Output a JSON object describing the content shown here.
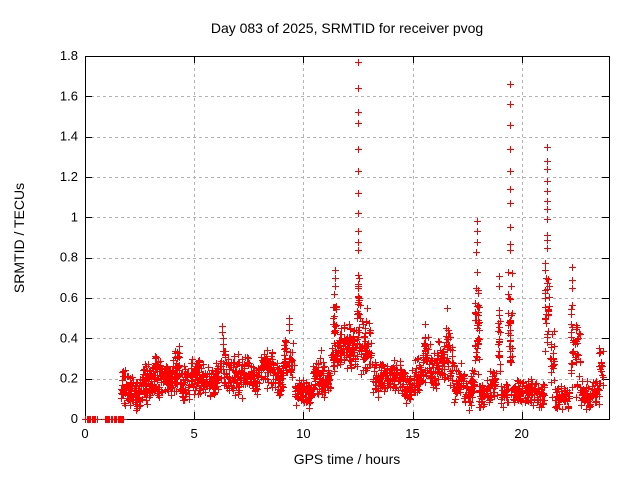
{
  "chart_data": {
    "type": "scatter",
    "title": "Day 083 of 2025, SRMTID for receiver pvog",
    "xlabel": "GPS time / hours",
    "ylabel": "SRMTID / TECUs",
    "xlim": [
      0,
      24
    ],
    "ylim": [
      0,
      1.8
    ],
    "xticks": [
      0,
      5,
      10,
      15,
      20
    ],
    "yticks": [
      0,
      0.2,
      0.4,
      0.6,
      0.8,
      1,
      1.2,
      1.4,
      1.6,
      1.8
    ],
    "ytick_labels": [
      "0",
      "0.2",
      "0.4",
      "0.6",
      "0.8",
      "1",
      "1.2",
      "1.4",
      "1.6",
      "1.8"
    ],
    "grid": true,
    "legend": "none",
    "marker": "plus",
    "marker_color": "#ff0000",
    "grid_color": "#b3b3b3",
    "border_color": "#000000",
    "background_color": "#ffffff",
    "zero_line_x": [
      0.02,
      0.07,
      0.12,
      0.18,
      0.24,
      0.3,
      0.36,
      0.42,
      0.48,
      0.54,
      0.92,
      0.97,
      1.02,
      1.07,
      1.12,
      1.18,
      1.25,
      1.32,
      1.38,
      1.44,
      1.5,
      1.58,
      1.61,
      1.63,
      1.65,
      1.66,
      1.68,
      1.7,
      1.72,
      1.74
    ],
    "bands_format": "x_start, x_end, y_min, y_max, point_count (dense scatter cloud envelope read from plot)",
    "cloud_bands": [
      [
        1.65,
        2.1,
        0.04,
        0.25,
        50
      ],
      [
        2.1,
        2.6,
        0.03,
        0.22,
        55
      ],
      [
        2.6,
        3.1,
        0.06,
        0.3,
        58
      ],
      [
        3.1,
        3.6,
        0.1,
        0.34,
        58
      ],
      [
        3.6,
        4.0,
        0.1,
        0.3,
        50
      ],
      [
        4.0,
        4.35,
        0.12,
        0.38,
        45
      ],
      [
        4.35,
        4.8,
        0.08,
        0.28,
        48
      ],
      [
        4.8,
        5.3,
        0.1,
        0.32,
        52
      ],
      [
        5.3,
        5.9,
        0.1,
        0.28,
        55
      ],
      [
        5.9,
        6.15,
        0.12,
        0.3,
        26
      ],
      [
        6.15,
        6.45,
        0.14,
        0.37,
        26
      ],
      [
        6.45,
        7.0,
        0.1,
        0.33,
        50
      ],
      [
        7.0,
        7.5,
        0.1,
        0.33,
        48
      ],
      [
        7.5,
        8.0,
        0.12,
        0.3,
        48
      ],
      [
        8.0,
        8.6,
        0.13,
        0.36,
        55
      ],
      [
        8.6,
        9.1,
        0.1,
        0.3,
        48
      ],
      [
        9.1,
        9.6,
        0.13,
        0.42,
        40
      ],
      [
        9.6,
        10.1,
        0.06,
        0.22,
        46
      ],
      [
        10.1,
        10.45,
        0.05,
        0.2,
        32
      ],
      [
        10.45,
        10.8,
        0.1,
        0.35,
        36
      ],
      [
        10.8,
        11.25,
        0.08,
        0.3,
        42
      ],
      [
        11.25,
        11.6,
        0.22,
        0.48,
        28
      ],
      [
        11.32,
        11.52,
        0.35,
        0.6,
        18
      ],
      [
        11.6,
        12.25,
        0.22,
        0.5,
        70
      ],
      [
        12.25,
        12.45,
        0.22,
        0.48,
        24
      ],
      [
        12.45,
        12.6,
        0.3,
        0.8,
        28
      ],
      [
        12.6,
        13.15,
        0.18,
        0.52,
        52
      ],
      [
        13.15,
        14.0,
        0.1,
        0.3,
        75
      ],
      [
        14.0,
        14.55,
        0.12,
        0.3,
        50
      ],
      [
        14.55,
        15.1,
        0.07,
        0.25,
        50
      ],
      [
        15.1,
        15.45,
        0.12,
        0.32,
        32
      ],
      [
        15.45,
        15.8,
        0.15,
        0.44,
        36
      ],
      [
        15.8,
        16.1,
        0.12,
        0.35,
        28
      ],
      [
        16.1,
        16.5,
        0.15,
        0.42,
        38
      ],
      [
        16.5,
        16.7,
        0.18,
        0.52,
        20
      ],
      [
        16.7,
        16.9,
        0.12,
        0.4,
        18
      ],
      [
        16.9,
        17.35,
        0.06,
        0.28,
        45
      ],
      [
        17.35,
        17.72,
        0.04,
        0.22,
        34
      ],
      [
        17.72,
        17.84,
        0.1,
        0.3,
        12
      ],
      [
        17.84,
        18.04,
        0.2,
        0.78,
        38
      ],
      [
        18.04,
        18.55,
        0.05,
        0.2,
        46
      ],
      [
        18.55,
        18.88,
        0.08,
        0.28,
        28
      ],
      [
        18.88,
        19.04,
        0.15,
        0.62,
        22
      ],
      [
        19.04,
        19.36,
        0.05,
        0.2,
        30
      ],
      [
        19.38,
        19.56,
        0.1,
        0.8,
        34
      ],
      [
        19.56,
        20.15,
        0.07,
        0.22,
        52
      ],
      [
        20.15,
        20.7,
        0.06,
        0.2,
        48
      ],
      [
        20.7,
        21.04,
        0.05,
        0.18,
        28
      ],
      [
        21.04,
        21.28,
        0.3,
        0.8,
        28
      ],
      [
        21.28,
        21.52,
        0.1,
        0.48,
        20
      ],
      [
        21.52,
        22.2,
        0.04,
        0.18,
        58
      ],
      [
        22.24,
        22.38,
        0.1,
        0.62,
        20
      ],
      [
        22.42,
        22.68,
        0.08,
        0.56,
        24
      ],
      [
        22.68,
        23.3,
        0.04,
        0.2,
        55
      ],
      [
        23.3,
        23.55,
        0.05,
        0.2,
        20
      ],
      [
        23.55,
        23.75,
        0.1,
        0.42,
        16
      ]
    ],
    "spike_points": [
      [
        6.3,
        0.37
      ],
      [
        6.3,
        0.4
      ],
      [
        6.29,
        0.43
      ],
      [
        6.28,
        0.46
      ],
      [
        9.35,
        0.44
      ],
      [
        9.36,
        0.47
      ],
      [
        9.34,
        0.5
      ],
      [
        11.42,
        0.62
      ],
      [
        11.43,
        0.66
      ],
      [
        11.43,
        0.7
      ],
      [
        11.44,
        0.74
      ],
      [
        12.5,
        0.84
      ],
      [
        12.5,
        0.88
      ],
      [
        12.5,
        0.93
      ],
      [
        12.51,
        1.02
      ],
      [
        12.51,
        1.12
      ],
      [
        12.52,
        1.23
      ],
      [
        12.52,
        1.34
      ],
      [
        12.5,
        1.47
      ],
      [
        12.5,
        1.52
      ],
      [
        12.51,
        1.64
      ],
      [
        12.51,
        1.77
      ],
      [
        12.92,
        0.55
      ],
      [
        15.55,
        0.47
      ],
      [
        16.6,
        0.55
      ],
      [
        17.93,
        0.83
      ],
      [
        17.94,
        0.88
      ],
      [
        17.95,
        0.93
      ],
      [
        17.96,
        0.98
      ],
      [
        18.95,
        0.66
      ],
      [
        18.95,
        0.71
      ],
      [
        19.45,
        0.84
      ],
      [
        19.45,
        0.87
      ],
      [
        19.45,
        0.95
      ],
      [
        19.46,
        1.07
      ],
      [
        19.46,
        1.14
      ],
      [
        19.45,
        1.23
      ],
      [
        19.45,
        1.34
      ],
      [
        19.46,
        1.46
      ],
      [
        19.46,
        1.56
      ],
      [
        19.45,
        1.66
      ],
      [
        21.15,
        0.85
      ],
      [
        21.15,
        0.89
      ],
      [
        21.16,
        0.91
      ],
      [
        21.16,
        0.99
      ],
      [
        21.15,
        1.04
      ],
      [
        21.15,
        1.08
      ],
      [
        21.16,
        1.13
      ],
      [
        21.16,
        1.18
      ],
      [
        21.15,
        1.24
      ],
      [
        21.15,
        1.28
      ],
      [
        21.16,
        1.35
      ],
      [
        22.3,
        0.65
      ],
      [
        22.31,
        0.69
      ],
      [
        22.3,
        0.755
      ]
    ]
  }
}
